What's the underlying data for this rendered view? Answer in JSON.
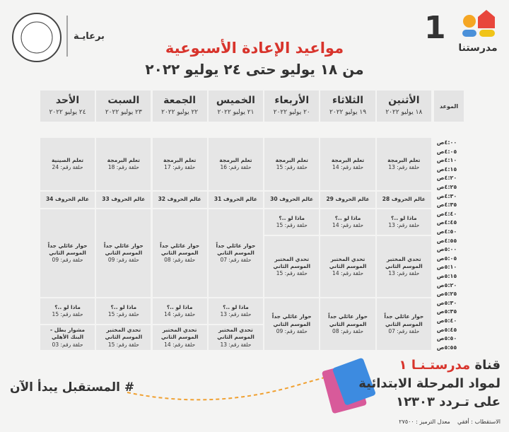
{
  "header": {
    "logo_text": "مدرستنا",
    "channel_number": "1",
    "sponsor": "برعايـة",
    "title": "مواعيد الإعادة الأسبوعية",
    "subtitle": "من ١٨ يوليو حتى ٢٤ يوليو ٢٠٢٢"
  },
  "table": {
    "time_header": "الموعد",
    "times": [
      "٤:٠٠ص",
      "٤:٠٥ص",
      "٤:١٠ص",
      "٤:١٥ص",
      "٤:٢٠ص",
      "٤:٢٥ص",
      "٤:٣٠ص",
      "٤:٣٥ص",
      "٤:٤٠ص",
      "٤:٤٥ص",
      "٤:٥٠ص",
      "٤:٥٥ص",
      "٥:٠٠ص",
      "٥:٠٥ص",
      "٥:١٠ص",
      "٥:١٥ص",
      "٥:٢٠ص",
      "٥:٢٥ص",
      "٥:٣٠ص",
      "٥:٣٥ص",
      "٥:٤٠ص",
      "٥:٤٥ص",
      "٥:٥٠ص",
      "٥:٥٥ص"
    ],
    "days": [
      {
        "name": "الأثنين",
        "date": "١٨ يوليو ٢٠٢٢",
        "programs": [
          {
            "title": "تعلم البرمجة",
            "episode": "حلقة رقم: 13"
          },
          {
            "title": "عالم الحروف 28"
          },
          {
            "title": "ماذا لو ..؟",
            "episode": "حلقة رقم: 13"
          },
          {
            "title": "تحدي المختبر الموسم الثاني",
            "episode": "حلقة رقم: 13"
          },
          {
            "title": "حوار عائلي جداً الموسم الثاني",
            "episode": "حلقة رقم: 07"
          }
        ]
      },
      {
        "name": "الثلاثاء",
        "date": "١٩ يوليو ٢٠٢٢",
        "programs": [
          {
            "title": "تعلم البرمجة",
            "episode": "حلقة رقم: 14"
          },
          {
            "title": "عالم الحروف 29"
          },
          {
            "title": "ماذا لو ..؟",
            "episode": "حلقة رقم: 14"
          },
          {
            "title": "تحدي المختبر الموسم الثاني",
            "episode": "حلقة رقم: 14"
          },
          {
            "title": "حوار عائلي جداً الموسم الثاني",
            "episode": "حلقة رقم: 08"
          }
        ]
      },
      {
        "name": "الأربعاء",
        "date": "٢٠ يوليو ٢٠٢٢",
        "programs": [
          {
            "title": "تعلم البرمجة",
            "episode": "حلقة رقم: 15"
          },
          {
            "title": "عالم الحروف 30"
          },
          {
            "title": "ماذا لو ..؟",
            "episode": "حلقة رقم: 15"
          },
          {
            "title": "تحدي المختبر الموسم الثاني",
            "episode": "حلقة رقم: 15"
          },
          {
            "title": "حوار عائلي جداً الموسم الثاني",
            "episode": "حلقة رقم: 09"
          }
        ]
      },
      {
        "name": "الخميس",
        "date": "٢١ يوليو ٢٠٢٢",
        "programs": [
          {
            "title": "تعلم البرمجة",
            "episode": "حلقة رقم: 16"
          },
          {
            "title": "عالم الحروف 31"
          },
          {
            "title": "حوار عائلي جداً الموسم الثاني",
            "episode": "حلقة رقم: 07"
          },
          {
            "title": "ماذا لو ..؟",
            "episode": "حلقة رقم: 13"
          },
          {
            "title": "تحدي المختبر الموسم الثاني",
            "episode": "حلقة رقم: 13"
          }
        ]
      },
      {
        "name": "الجمعة",
        "date": "٢٢ يوليو ٢٠٢٢",
        "programs": [
          {
            "title": "تعلم البرمجة",
            "episode": "حلقة رقم: 17"
          },
          {
            "title": "عالم الحروف 32"
          },
          {
            "title": "حوار عائلي جداً الموسم الثاني",
            "episode": "حلقة رقم: 08"
          },
          {
            "title": "ماذا لو ..؟",
            "episode": "حلقة رقم: 14"
          },
          {
            "title": "تحدي المختبر الموسم الثاني",
            "episode": "حلقة رقم: 14"
          }
        ]
      },
      {
        "name": "السبت",
        "date": "٢٣ يوليو ٢٠٢٢",
        "programs": [
          {
            "title": "تعلم البرمجة",
            "episode": "حلقة رقم: 18"
          },
          {
            "title": "عالم الحروف 33"
          },
          {
            "title": "حوار عائلي جداً الموسم الثاني",
            "episode": "حلقة رقم: 09"
          },
          {
            "title": "ماذا لو ..؟",
            "episode": "حلقة رقم: 15"
          },
          {
            "title": "تحدي المختبر الموسم الثاني",
            "episode": "حلقة رقم: 15"
          }
        ]
      },
      {
        "name": "الأحد",
        "date": "٢٤ يوليو ٢٠٢٢",
        "programs": [
          {
            "title": "تعلم الصينية",
            "episode": "حلقة رقم: 24"
          },
          {
            "title": "عالم الحروف 34"
          },
          {
            "title": "حوار عائلي جداً الموسم الثاني",
            "episode": "حلقة رقم: 09"
          },
          {
            "title": "ماذا لو ..؟",
            "episode": "حلقة رقم: 15"
          },
          {
            "title": "مشوار بطل - البنك الأهلي",
            "episode": "حلقة رقم: 03"
          }
        ]
      }
    ]
  },
  "footer": {
    "channel_prefix": "قناة",
    "channel_name": "مدرستـنـا ١",
    "line2": "لمواد المرحلة الابتدائية",
    "line3": "على تـردد ١٢٣٠٣",
    "reception": "الاستقطاب : أفقي    معدل الترميز : ٢٧٥٠٠",
    "hashtag": "# المستقبل يبدأ الآن"
  }
}
